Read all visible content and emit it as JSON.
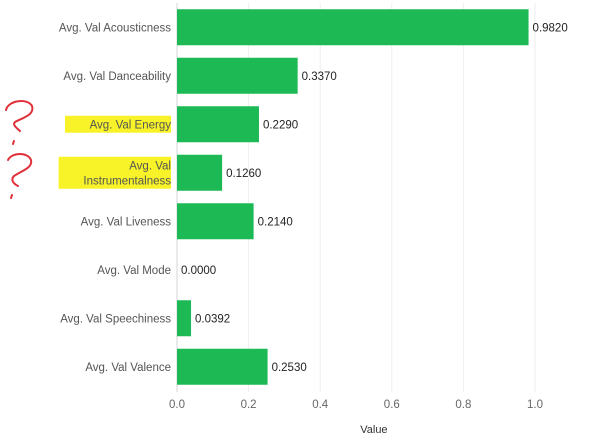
{
  "chart_data": {
    "type": "bar",
    "orientation": "horizontal",
    "categories": [
      "Avg. Val Acousticness",
      "Avg. Val Danceability",
      "Avg. Val Energy",
      "Avg. Val Instrumentalness",
      "Avg. Val Liveness",
      "Avg. Val Mode",
      "Avg. Val Speechiness",
      "Avg. Val Valence"
    ],
    "category_lines": [
      [
        "Avg. Val Acousticness"
      ],
      [
        "Avg. Val Danceability"
      ],
      [
        "Avg. Val Energy"
      ],
      [
        "Avg. Val",
        "Instrumentalness"
      ],
      [
        "Avg. Val Liveness"
      ],
      [
        "Avg. Val Mode"
      ],
      [
        "Avg. Val Speechiness"
      ],
      [
        "Avg. Val Valence"
      ]
    ],
    "values": [
      0.982,
      0.337,
      0.229,
      0.126,
      0.214,
      0.0,
      0.0392,
      0.253
    ],
    "value_labels": [
      "0.9820",
      "0.3370",
      "0.2290",
      "0.1260",
      "0.2140",
      "0.0000",
      "0.0392",
      "0.2530"
    ],
    "highlighted": [
      false,
      false,
      true,
      true,
      false,
      false,
      false,
      false
    ],
    "xlabel": "Value",
    "xlim": [
      0,
      1.16
    ],
    "xticks": [
      0.0,
      0.2,
      0.4,
      0.6,
      0.8,
      1.0
    ],
    "xtick_labels": [
      "0.0",
      "0.2",
      "0.4",
      "0.6",
      "0.8",
      "1.0"
    ],
    "grid": true,
    "bar_color": "#1db954",
    "highlight_color": "#f7f21c",
    "annotation_color": "#e0303a"
  }
}
